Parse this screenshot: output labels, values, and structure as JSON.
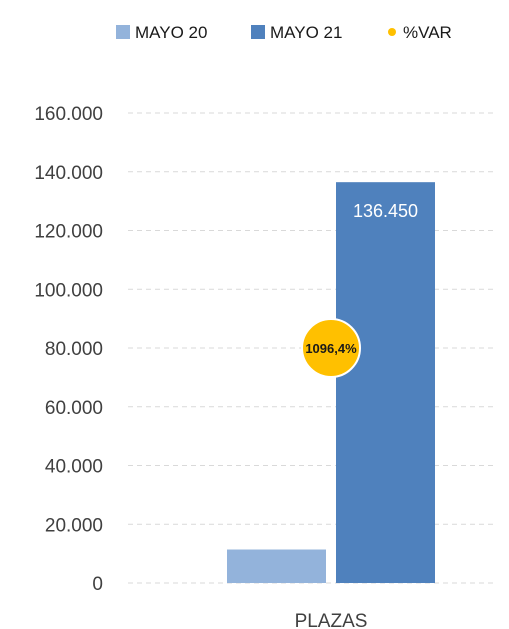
{
  "chart_data": {
    "type": "bar",
    "categories": [
      "PLAZAS"
    ],
    "series": [
      {
        "name": "MAYO 20",
        "values": [
          11400
        ],
        "color": "#93B3DB"
      },
      {
        "name": "MAYO 21",
        "values": [
          136450
        ],
        "color": "#4F81BD",
        "value_label": "136.450"
      }
    ],
    "markers": [
      {
        "name": "%VAR",
        "y": 80000,
        "label": "1096,4%",
        "color": "#FFC000"
      }
    ],
    "ylim": [
      0,
      160000
    ],
    "yticks": [
      0,
      20000,
      40000,
      60000,
      80000,
      100000,
      120000,
      140000,
      160000
    ],
    "ytick_labels": [
      "0",
      "20.000",
      "40.000",
      "60.000",
      "80.000",
      "100.000",
      "120.000",
      "140.000",
      "160.000"
    ],
    "grid": true,
    "legend_position": "top",
    "title": "",
    "xlabel": "",
    "ylabel": ""
  }
}
